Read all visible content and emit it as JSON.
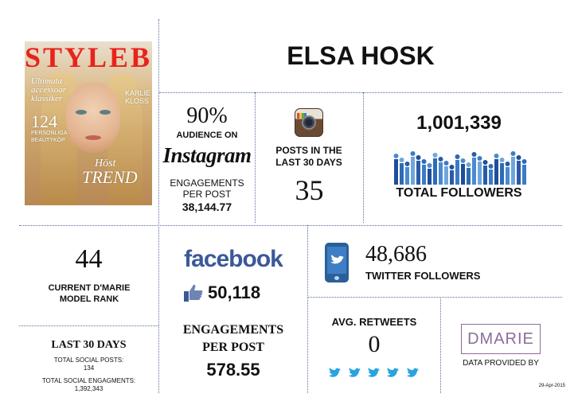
{
  "header": {
    "name": "ELSA HOSK"
  },
  "cover": {
    "masthead": "STYLEBY",
    "headline_1": "Ultimata",
    "headline_2": "accessoar",
    "headline_3": "klassiker",
    "count": "124",
    "count_label_1": "PERSONLIGA",
    "count_label_2": "BEAUTYKÖP",
    "season_1": "Höst",
    "season_2": "TREND",
    "side_1": "KARLIE",
    "side_2": "KLOSS"
  },
  "instagram": {
    "audience_percent": "90%",
    "audience_label": "AUDIENCE ON",
    "logo_text": "Instagram",
    "engagements_label": "ENGAGEMENTS PER POST",
    "engagements_value": "38,144.77"
  },
  "posts": {
    "label": "POSTS IN THE LAST 30 DAYS",
    "value": "35"
  },
  "followers": {
    "value": "1,001,339",
    "label": "TOTAL FOLLOWERS"
  },
  "rank": {
    "value": "44",
    "label": "CURRENT D'MARIE MODEL RANK"
  },
  "facebook": {
    "logo_text": "facebook",
    "likes": "50,118",
    "engagements_label": "ENGAGEMENTS PER POST",
    "engagements_value": "578.55"
  },
  "twitter": {
    "followers_value": "48,686",
    "followers_label": "TWITTER FOLLOWERS",
    "retweets_label": "AVG. RETWEETS",
    "retweets_value": "0"
  },
  "last30": {
    "title": "LAST 30 DAYS",
    "posts_label": "TOTAL SOCIAL POSTS:",
    "posts_value": "134",
    "engagements_label": "TOTAL SOCIAL ENGAGMENTS:",
    "engagements_value": "1,392,343"
  },
  "provider": {
    "logo": "DMARIE",
    "label": "DATA PROVIDED BY",
    "date": "29-Apr-2015"
  },
  "colors": {
    "divider": "#5a6f95",
    "facebook": "#3b5998",
    "twitter_blue": "#2aa3e0",
    "phone": "#2b5f9a",
    "dmarie": "#8f6b9a"
  }
}
